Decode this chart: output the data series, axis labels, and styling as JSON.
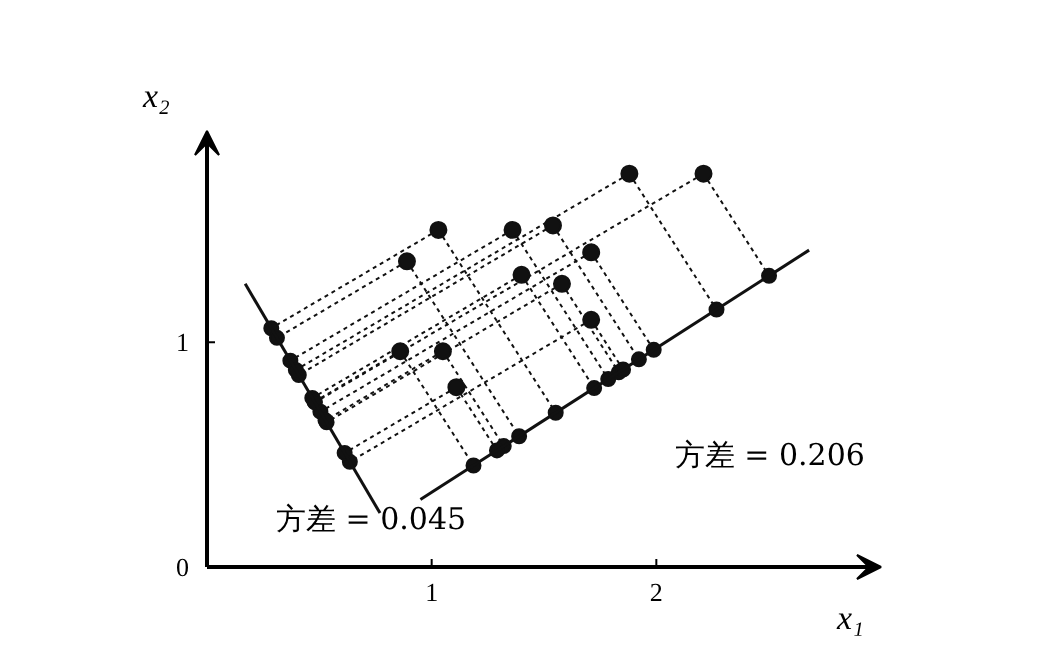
{
  "chart_data": {
    "type": "scatter",
    "xlabel": "x₁",
    "ylabel": "x₂",
    "xlim": [
      0,
      3.0
    ],
    "ylim": [
      0,
      1.94
    ],
    "xticks": [
      {
        "value": 0,
        "label": null
      },
      1,
      2
    ],
    "yticks": [
      0,
      1
    ],
    "grid": false,
    "series": [
      {
        "color": "#111111",
        "marker": "circle",
        "x": [
          1.03,
          1.36,
          1.54,
          1.88,
          2.21,
          0.89,
          1.4,
          1.58,
          1.71,
          1.71,
          0.86,
          1.05,
          1.11
        ],
        "values": [
          1.5,
          1.5,
          1.52,
          1.75,
          1.75,
          1.36,
          1.3,
          1.26,
          1.4,
          1.1,
          0.96,
          0.96,
          0.8
        ]
      },
      {
        "type": "line",
        "color": "#111111",
        "x": [
          0.95,
          2.68
        ],
        "values": [
          0.3,
          1.41
        ]
      },
      {
        "type": "line",
        "color": "#111111",
        "x": [
          0.17,
          0.77
        ],
        "values": [
          1.26,
          0.24
        ]
      }
    ],
    "annotations": [
      "方差 = 0.206",
      "方差 = 0.045"
    ]
  }
}
